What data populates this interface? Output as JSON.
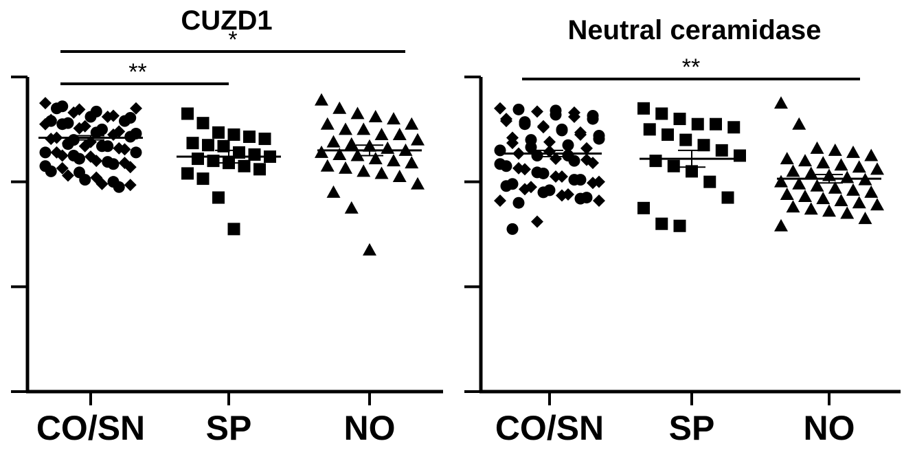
{
  "chart_data": [
    {
      "type": "scatter",
      "title": "CUZD1",
      "categories": [
        "CO/SN",
        "SP",
        "NO"
      ],
      "ylim": [
        0,
        3
      ],
      "yticks": [
        0,
        1,
        2,
        3
      ],
      "series": [
        {
          "category": "CO/SN",
          "marker": "diamond+circle",
          "mean": 2.42,
          "sem": 0.02,
          "values": [
            2.75,
            2.72,
            2.69,
            2.67,
            2.63,
            2.61,
            2.59,
            2.56,
            2.53,
            2.5,
            2.48,
            2.46,
            2.42,
            2.4,
            2.38,
            2.34,
            2.31,
            2.28,
            2.25,
            2.22,
            2.2,
            2.17,
            2.14,
            2.1,
            2.06,
            2.02,
            1.98,
            1.95,
            2.7,
            2.7,
            2.66,
            2.62,
            2.62,
            2.58,
            2.55,
            2.55,
            2.51,
            2.47,
            2.45,
            2.43,
            2.41,
            2.36,
            2.34,
            2.34,
            2.32,
            2.28,
            2.28,
            2.25,
            2.24,
            2.19,
            2.18,
            2.15,
            2.13,
            2.09,
            2.04,
            2.0,
            1.97,
            2.58,
            2.37
          ]
        },
        {
          "category": "SP",
          "marker": "square",
          "mean": 2.24,
          "sem": 0.06,
          "values": [
            2.65,
            2.56,
            2.47,
            2.45,
            2.43,
            2.41,
            2.37,
            2.35,
            2.34,
            2.28,
            2.26,
            2.24,
            2.22,
            2.2,
            2.18,
            2.15,
            2.12,
            2.08,
            2.03,
            1.85,
            1.55
          ]
        },
        {
          "category": "NO",
          "marker": "triangle",
          "mean": 2.3,
          "sem": 0.05,
          "values": [
            2.78,
            2.7,
            2.65,
            2.62,
            2.6,
            2.55,
            2.55,
            2.5,
            2.5,
            2.45,
            2.45,
            2.4,
            2.38,
            2.36,
            2.34,
            2.32,
            2.3,
            2.28,
            2.26,
            2.25,
            2.22,
            2.2,
            2.18,
            2.15,
            2.13,
            2.1,
            2.08,
            2.05,
            1.98,
            1.9,
            1.75,
            1.35
          ]
        }
      ],
      "significance": [
        {
          "from": "CO/SN",
          "to": "NO",
          "label": "*"
        },
        {
          "from": "CO/SN",
          "to": "SP",
          "label": "**"
        }
      ],
      "grid": false,
      "legend": "none"
    },
    {
      "type": "scatter",
      "title": "Neutral ceramidase",
      "categories": [
        "CO/SN",
        "SP",
        "NO"
      ],
      "ylim": [
        0,
        3
      ],
      "yticks": [
        0,
        1,
        2,
        3
      ],
      "series": [
        {
          "category": "CO/SN",
          "marker": "diamond+circle",
          "mean": 2.27,
          "sem": 0.03,
          "values": [
            2.7,
            2.69,
            2.67,
            2.64,
            2.62,
            2.6,
            2.58,
            2.55,
            2.52,
            2.5,
            2.47,
            2.44,
            2.42,
            2.4,
            2.38,
            2.35,
            2.32,
            2.3,
            2.27,
            2.25,
            2.22,
            2.2,
            2.18,
            2.15,
            2.12,
            2.08,
            2.05,
            2.02,
            2.0,
            1.98,
            1.95,
            1.92,
            1.88,
            1.85,
            1.82,
            1.8,
            1.62,
            2.68,
            2.66,
            2.63,
            2.6,
            2.57,
            2.53,
            2.49,
            2.45,
            2.41,
            2.37,
            2.33,
            2.29,
            2.25,
            2.21,
            2.17,
            2.13,
            2.09,
            2.05,
            2.02,
            1.99,
            1.96,
            1.93,
            1.9,
            1.87,
            1.84,
            1.82,
            1.55
          ]
        },
        {
          "category": "SP",
          "marker": "square",
          "mean": 2.22,
          "sem": 0.08,
          "values": [
            2.7,
            2.65,
            2.6,
            2.55,
            2.55,
            2.52,
            2.5,
            2.45,
            2.4,
            2.35,
            2.3,
            2.25,
            2.2,
            2.15,
            2.1,
            2.0,
            1.85,
            1.75,
            1.6,
            1.58
          ]
        },
        {
          "category": "NO",
          "marker": "triangle",
          "mean": 2.03,
          "sem": 0.04,
          "values": [
            2.75,
            2.55,
            2.32,
            2.3,
            2.28,
            2.25,
            2.22,
            2.2,
            2.18,
            2.16,
            2.14,
            2.12,
            2.1,
            2.08,
            2.06,
            2.04,
            2.02,
            2.0,
            1.98,
            1.96,
            1.94,
            1.92,
            1.9,
            1.88,
            1.86,
            1.84,
            1.82,
            1.8,
            1.78,
            1.76,
            1.74,
            1.72,
            1.7,
            1.65,
            1.58
          ]
        }
      ],
      "significance": [
        {
          "from": "CO/SN",
          "to": "NO",
          "label": "**"
        }
      ],
      "grid": false,
      "legend": "none"
    }
  ]
}
